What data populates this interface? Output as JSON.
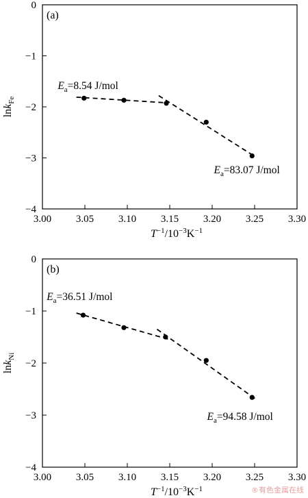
{
  "chart_data": [
    {
      "type": "scatter",
      "panel_label": "(a)",
      "xlabel": {
        "base": "T",
        "sup": "−1",
        "rest": "/10",
        "sup2": "−3",
        "unit": "K",
        "sup3": "−1"
      },
      "ylabel": {
        "base": "lnk",
        "sub": "Fe"
      },
      "xlim": [
        3.0,
        3.3
      ],
      "ylim": [
        -4,
        0
      ],
      "xticks": [
        "3.00",
        "3.05",
        "3.10",
        "3.15",
        "3.20",
        "3.25",
        "3.30"
      ],
      "yticks": [
        "0",
        "−1",
        "−2",
        "−3",
        "−4"
      ],
      "points": [
        {
          "x": 3.049,
          "y": -1.83
        },
        {
          "x": 3.096,
          "y": -1.87
        },
        {
          "x": 3.146,
          "y": -1.93
        },
        {
          "x": 3.193,
          "y": -2.3
        },
        {
          "x": 3.247,
          "y": -2.96
        }
      ],
      "fit_lines": [
        {
          "x": [
            3.04,
            3.146
          ],
          "y": [
            -1.81,
            -1.92
          ]
        },
        {
          "x": [
            3.137,
            3.251
          ],
          "y": [
            -1.78,
            -2.98
          ]
        }
      ],
      "annotations": [
        {
          "ea": "E",
          "sub": "a",
          "text": "=8.54 J/mol",
          "x": 3.018,
          "y": -1.65
        },
        {
          "ea": "E",
          "sub": "a",
          "text": "=83.07 J/mol",
          "x": 3.202,
          "y": -3.3
        }
      ]
    },
    {
      "type": "scatter",
      "panel_label": "(b)",
      "xlabel": {
        "base": "T",
        "sup": "−1",
        "rest": "/10",
        "sup2": "−3",
        "unit": "K",
        "sup3": "−1"
      },
      "ylabel": {
        "base": "lnk",
        "sub": "Ni"
      },
      "xlim": [
        3.0,
        3.3
      ],
      "ylim": [
        -4,
        0
      ],
      "xticks": [
        "3.00",
        "3.05",
        "3.10",
        "3.15",
        "3.20",
        "3.25",
        "3.30"
      ],
      "yticks": [
        "0",
        "−1",
        "−2",
        "−3",
        "−4"
      ],
      "points": [
        {
          "x": 3.048,
          "y": -1.08
        },
        {
          "x": 3.096,
          "y": -1.32
        },
        {
          "x": 3.145,
          "y": -1.5
        },
        {
          "x": 3.193,
          "y": -1.95
        },
        {
          "x": 3.247,
          "y": -2.66
        }
      ],
      "fit_lines": [
        {
          "x": [
            3.04,
            3.15
          ],
          "y": [
            -1.04,
            -1.55
          ]
        },
        {
          "x": [
            3.135,
            3.252
          ],
          "y": [
            -1.35,
            -2.7
          ]
        }
      ],
      "annotations": [
        {
          "ea": "E",
          "sub": "a",
          "text": "=36.51 J/mol",
          "x": 3.005,
          "y": -0.79
        },
        {
          "ea": "E",
          "sub": "a",
          "text": "=94.58 J/mol",
          "x": 3.194,
          "y": -3.09
        }
      ]
    }
  ],
  "watermark": "®有色金属在线"
}
